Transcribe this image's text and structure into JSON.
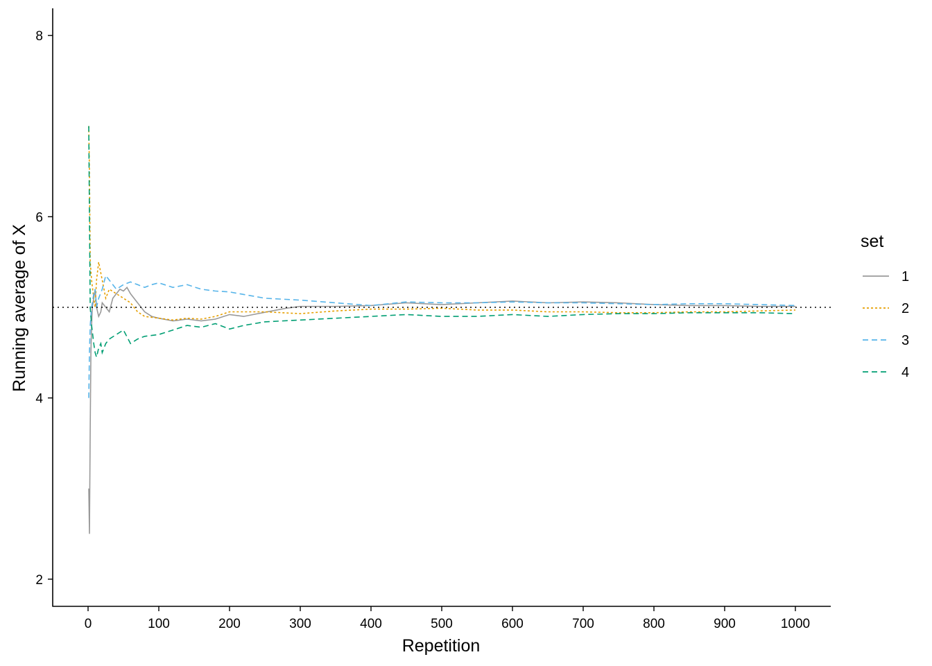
{
  "chart_data": {
    "type": "line",
    "xlabel": "Repetition",
    "ylabel": "Running average of X",
    "xlim": [
      -50,
      1050
    ],
    "ylim": [
      1.7,
      8.3
    ],
    "x_ticks": [
      0,
      100,
      200,
      300,
      400,
      500,
      600,
      700,
      800,
      900,
      1000
    ],
    "y_ticks": [
      2,
      4,
      6,
      8
    ],
    "grid": false,
    "reference_line": {
      "y": 5,
      "style": "dotted",
      "color": "#000000"
    },
    "legend": {
      "title": "set",
      "position": "right"
    },
    "series": [
      {
        "name": "1",
        "color": "#999999",
        "dash": "solid",
        "x": [
          1,
          2,
          3,
          4,
          5,
          6,
          8,
          10,
          12,
          15,
          18,
          20,
          25,
          30,
          35,
          40,
          45,
          50,
          55,
          60,
          70,
          80,
          90,
          100,
          120,
          140,
          160,
          180,
          200,
          220,
          240,
          260,
          280,
          300,
          350,
          400,
          450,
          500,
          550,
          600,
          650,
          700,
          750,
          800,
          850,
          900,
          950,
          1000
        ],
        "y": [
          3.0,
          2.5,
          3.67,
          4.5,
          4.8,
          5.0,
          5.1,
          5.2,
          5.0,
          4.9,
          4.95,
          5.05,
          5.0,
          4.95,
          5.1,
          5.15,
          5.2,
          5.18,
          5.22,
          5.15,
          5.05,
          4.95,
          4.9,
          4.88,
          4.85,
          4.87,
          4.85,
          4.87,
          4.92,
          4.9,
          4.93,
          4.96,
          4.99,
          5.01,
          5.01,
          5.02,
          5.05,
          5.03,
          5.05,
          5.07,
          5.05,
          5.06,
          5.05,
          5.03,
          5.02,
          5.02,
          5.01,
          5.01
        ]
      },
      {
        "name": "2",
        "color": "#E69F00",
        "dash": "dotted",
        "x": [
          1,
          2,
          3,
          5,
          8,
          10,
          12,
          15,
          20,
          25,
          30,
          40,
          50,
          60,
          70,
          80,
          100,
          120,
          140,
          160,
          180,
          200,
          250,
          300,
          350,
          400,
          450,
          500,
          550,
          600,
          650,
          700,
          750,
          800,
          850,
          900,
          950,
          1000
        ],
        "y": [
          7.0,
          6.5,
          5.5,
          5.3,
          5.1,
          5.0,
          5.3,
          5.5,
          5.3,
          5.1,
          5.2,
          5.15,
          5.1,
          5.05,
          4.95,
          4.9,
          4.88,
          4.86,
          4.88,
          4.87,
          4.9,
          4.95,
          4.95,
          4.93,
          4.96,
          4.98,
          4.98,
          4.99,
          4.97,
          4.97,
          4.95,
          4.95,
          4.94,
          4.94,
          4.95,
          4.95,
          4.96,
          4.97
        ]
      },
      {
        "name": "3",
        "color": "#56B4E9",
        "dash": "dashed",
        "x": [
          1,
          2,
          3,
          5,
          8,
          10,
          12,
          15,
          20,
          25,
          30,
          40,
          50,
          60,
          70,
          80,
          90,
          100,
          120,
          140,
          160,
          180,
          200,
          250,
          300,
          350,
          400,
          450,
          500,
          550,
          600,
          650,
          700,
          750,
          800,
          850,
          900,
          950,
          1000
        ],
        "y": [
          4.0,
          4.5,
          4.8,
          5.0,
          5.15,
          5.2,
          5.0,
          5.1,
          5.2,
          5.35,
          5.3,
          5.2,
          5.25,
          5.28,
          5.25,
          5.22,
          5.25,
          5.27,
          5.22,
          5.25,
          5.2,
          5.18,
          5.17,
          5.1,
          5.08,
          5.05,
          5.02,
          5.06,
          5.05,
          5.05,
          5.06,
          5.05,
          5.05,
          5.04,
          5.03,
          5.04,
          5.04,
          5.03,
          5.02
        ]
      },
      {
        "name": "4",
        "color": "#009E73",
        "dash": "dashed",
        "x": [
          1,
          2,
          3,
          5,
          8,
          10,
          12,
          15,
          18,
          20,
          25,
          30,
          40,
          50,
          60,
          70,
          80,
          100,
          120,
          140,
          160,
          180,
          200,
          220,
          250,
          300,
          350,
          400,
          450,
          500,
          550,
          600,
          650,
          700,
          750,
          800,
          850,
          900,
          950,
          1000
        ],
        "y": [
          7.0,
          6.0,
          5.0,
          4.8,
          4.6,
          4.5,
          4.45,
          4.55,
          4.6,
          4.5,
          4.6,
          4.65,
          4.7,
          4.75,
          4.6,
          4.65,
          4.68,
          4.7,
          4.75,
          4.8,
          4.78,
          4.82,
          4.76,
          4.8,
          4.84,
          4.86,
          4.88,
          4.9,
          4.92,
          4.9,
          4.9,
          4.92,
          4.9,
          4.92,
          4.93,
          4.93,
          4.94,
          4.94,
          4.94,
          4.93
        ]
      }
    ]
  }
}
